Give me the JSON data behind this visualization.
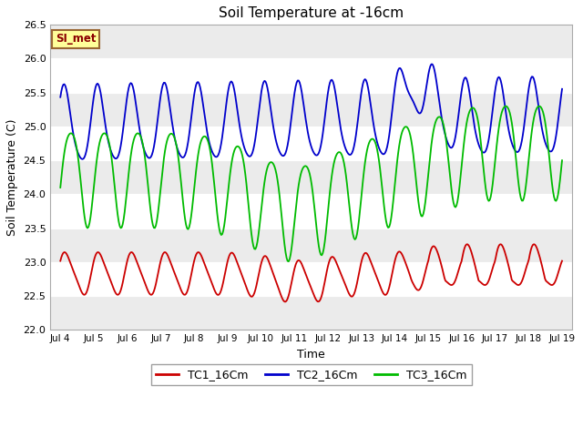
{
  "title": "Soil Temperature at -16cm",
  "xlabel": "Time",
  "ylabel": "Soil Temperature (C)",
  "ylim": [
    22.0,
    26.5
  ],
  "xlim_days": [
    3.7,
    19.3
  ],
  "annotation_text": "SI_met",
  "annotation_bg": "#FFFF99",
  "annotation_border": "#996633",
  "fig_bg": "#FFFFFF",
  "plot_bg_light": "#EBEBEB",
  "plot_bg_dark": "#FFFFFF",
  "line_colors": {
    "TC1": "#CC0000",
    "TC2": "#0000CC",
    "TC3": "#00BB00"
  },
  "legend_labels": [
    "TC1_16Cm",
    "TC2_16Cm",
    "TC3_16Cm"
  ],
  "tick_labels": [
    "Jul 4",
    "Jul 5",
    "Jul 6",
    "Jul 7",
    "Jul 8",
    "Jul 9",
    "Jul 10",
    "Jul 11",
    "Jul 12",
    "Jul 13",
    "Jul 14",
    "Jul 15",
    "Jul 16",
    "Jul 17",
    "Jul 18",
    "Jul 19"
  ],
  "tick_positions": [
    4,
    5,
    6,
    7,
    8,
    9,
    10,
    11,
    12,
    13,
    14,
    15,
    16,
    17,
    18,
    19
  ],
  "yticks": [
    22.0,
    22.5,
    23.0,
    23.5,
    24.0,
    24.5,
    25.0,
    25.5,
    26.0,
    26.5
  ]
}
